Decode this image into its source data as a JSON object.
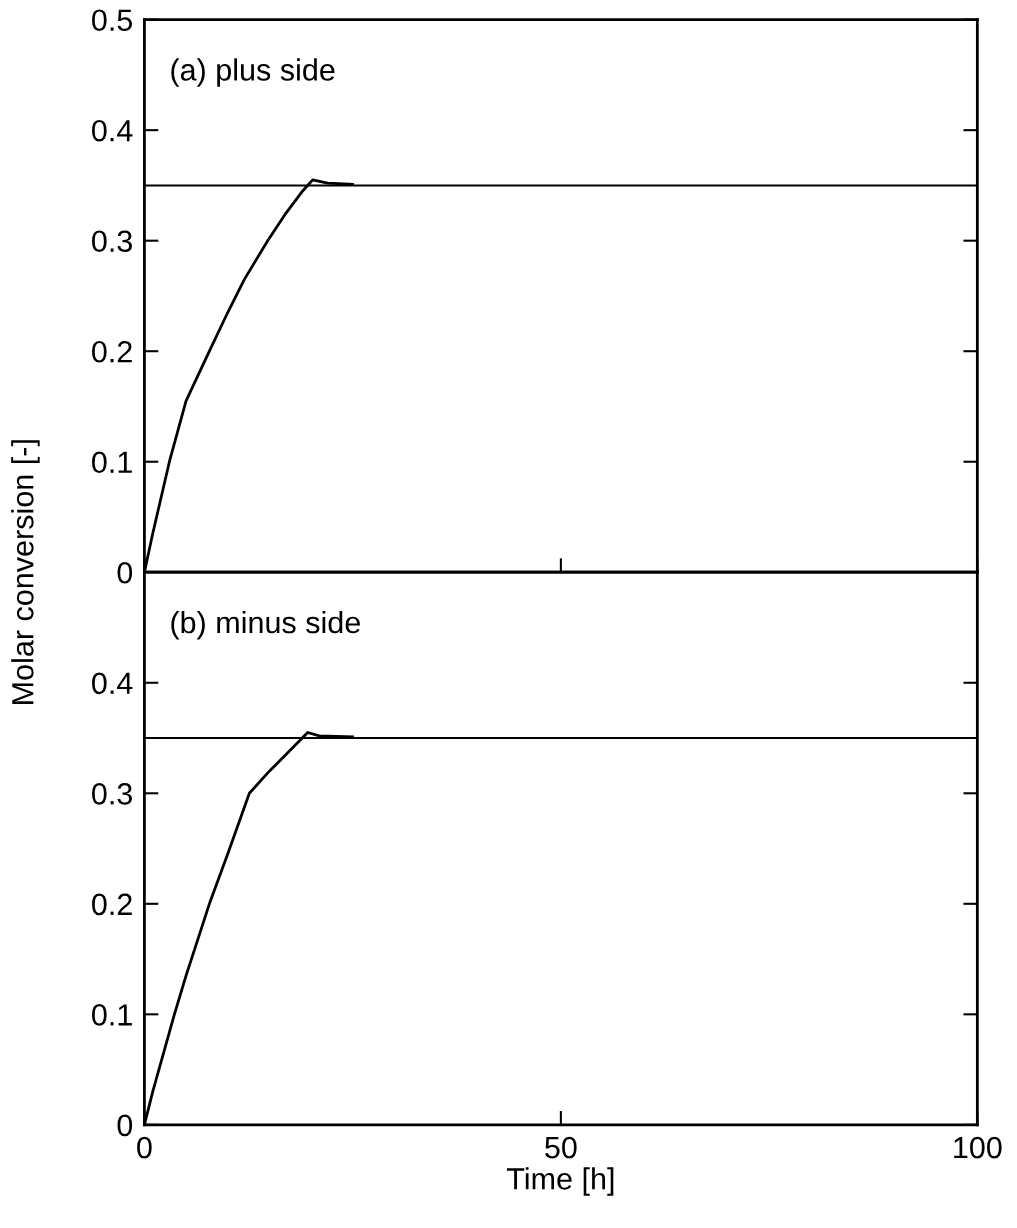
{
  "chart_data": [
    {
      "type": "line",
      "title": "(a) plus side",
      "ylabel": "Molar conversion [-]",
      "x": [
        0,
        1,
        3,
        5,
        7.8,
        10,
        12,
        14.8,
        17,
        19,
        20.2,
        22,
        25
      ],
      "series": [
        {
          "color": "#000000",
          "values": [
            0,
            0.035,
            0.1,
            0.155,
            0.2,
            0.235,
            0.265,
            0.3,
            0.325,
            0.345,
            0.355,
            0.352,
            0.351
          ]
        }
      ],
      "xlim": [
        0,
        100
      ],
      "xticks": [
        0,
        50,
        100
      ],
      "ylim": [
        0,
        0.5
      ],
      "yticks": [
        0,
        0.1,
        0.2,
        0.3,
        0.4,
        0.5
      ],
      "tick_labels": "y",
      "grid": false,
      "legend": false,
      "ref_lines": [
        {
          "axis": "y",
          "value": 0.35,
          "color": "#000000"
        }
      ]
    },
    {
      "type": "line",
      "title": "(b) minus side",
      "xlabel": "Time [h]",
      "x": [
        0,
        1,
        3.6,
        5,
        7.8,
        10,
        12.6,
        15,
        17,
        19.6,
        21,
        25
      ],
      "series": [
        {
          "color": "#000000",
          "values": [
            0,
            0.03,
            0.1,
            0.135,
            0.2,
            0.245,
            0.3,
            0.32,
            0.335,
            0.355,
            0.352,
            0.351
          ]
        }
      ],
      "xlim": [
        0,
        100
      ],
      "xticks": [
        0,
        50,
        100
      ],
      "ylim": [
        0,
        0.5
      ],
      "yticks": [
        0,
        0.1,
        0.2,
        0.3,
        0.4
      ],
      "grid": false,
      "legend": false,
      "ref_lines": [
        {
          "axis": "y",
          "value": 0.35,
          "color": "#000000"
        }
      ]
    }
  ]
}
